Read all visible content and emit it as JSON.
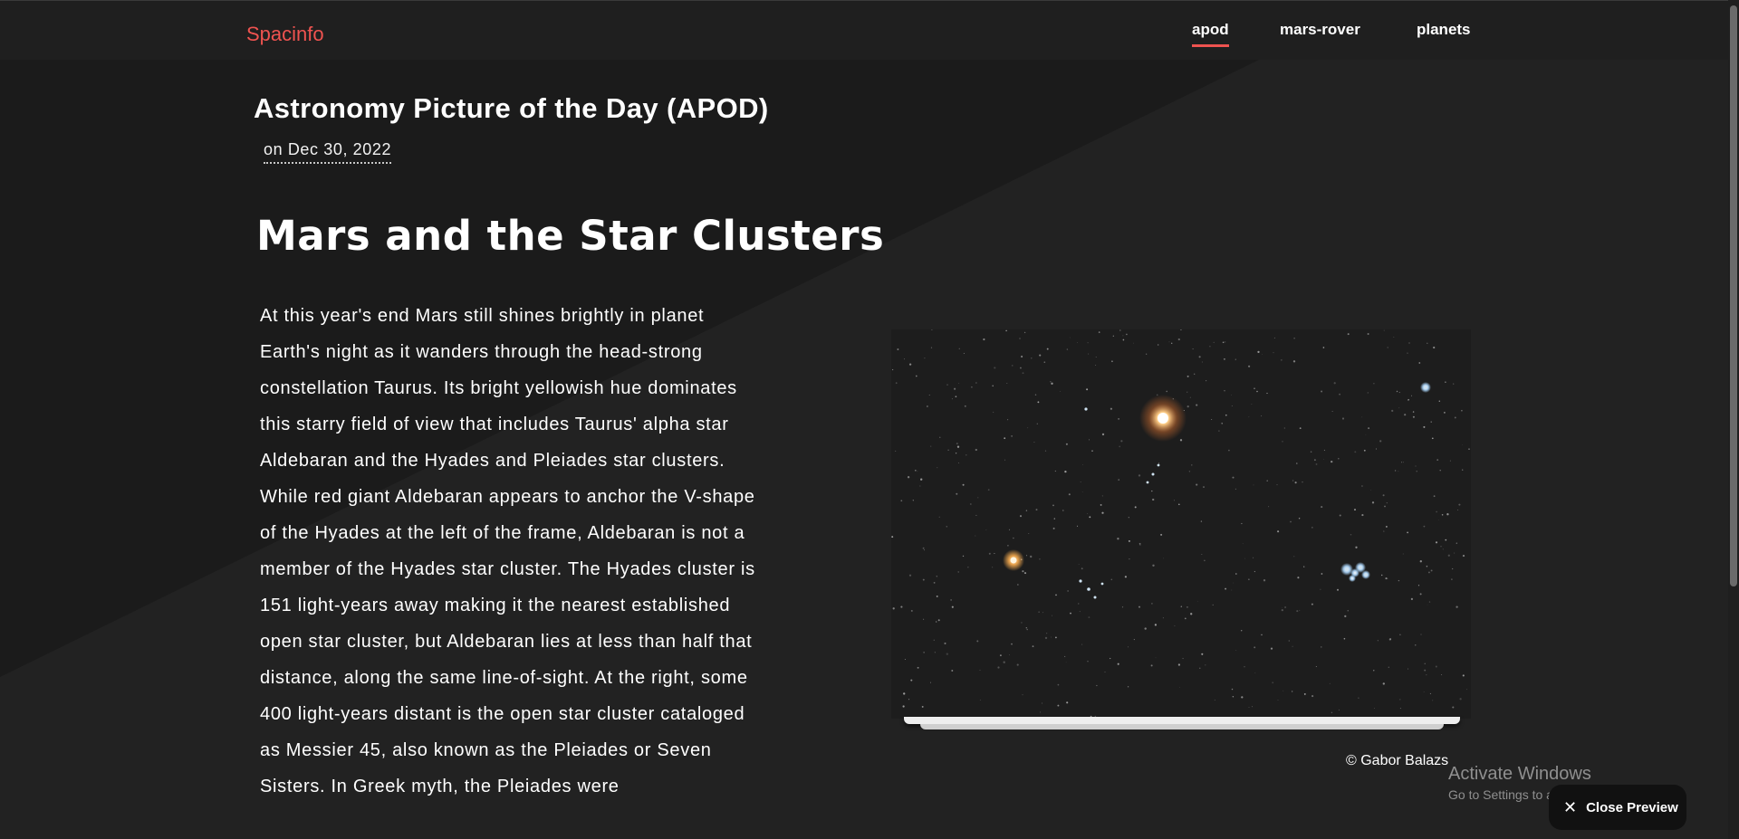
{
  "header": {
    "brand": "Spacinfo",
    "nav": [
      {
        "label": "apod",
        "active": true
      },
      {
        "label": "mars-rover",
        "active": false
      },
      {
        "label": "planets",
        "active": false
      }
    ]
  },
  "apod": {
    "section_title": "Astronomy Picture of the Day (APOD)",
    "date": "on Dec 30, 2022",
    "title": "Mars and the Star Clusters",
    "explanation": "At this year's end Mars still shines brightly in planet Earth's night as it wanders through the head-strong constellation Taurus. Its bright yellowish hue dominates this starry field of view that includes Taurus' alpha star Aldebaran and the Hyades and Pleiades star clusters. While red giant Aldebaran appears to anchor the V-shape of the Hyades at the left of the frame, Aldebaran is not a member of the Hyades star cluster. The Hyades cluster is 151 light-years away making it the nearest established open star cluster, but Aldebaran lies at less than half that distance, along the same line-of-sight. At the right, some 400 light-years distant is the open star cluster cataloged as Messier 45, also known as the Pleiades or Seven Sisters. In Greek myth, the Pleiades were",
    "copyright": "© Gabor Balazs"
  },
  "os_overlay": {
    "activate_title": "Activate Windows",
    "activate_sub": "Go to Settings to activate Windows."
  },
  "preview": {
    "close_label": "Close Preview",
    "close_icon": "close-icon"
  },
  "colors": {
    "accent": "#ef5350",
    "background": "#222222",
    "topbar": "#1f1f1f"
  }
}
